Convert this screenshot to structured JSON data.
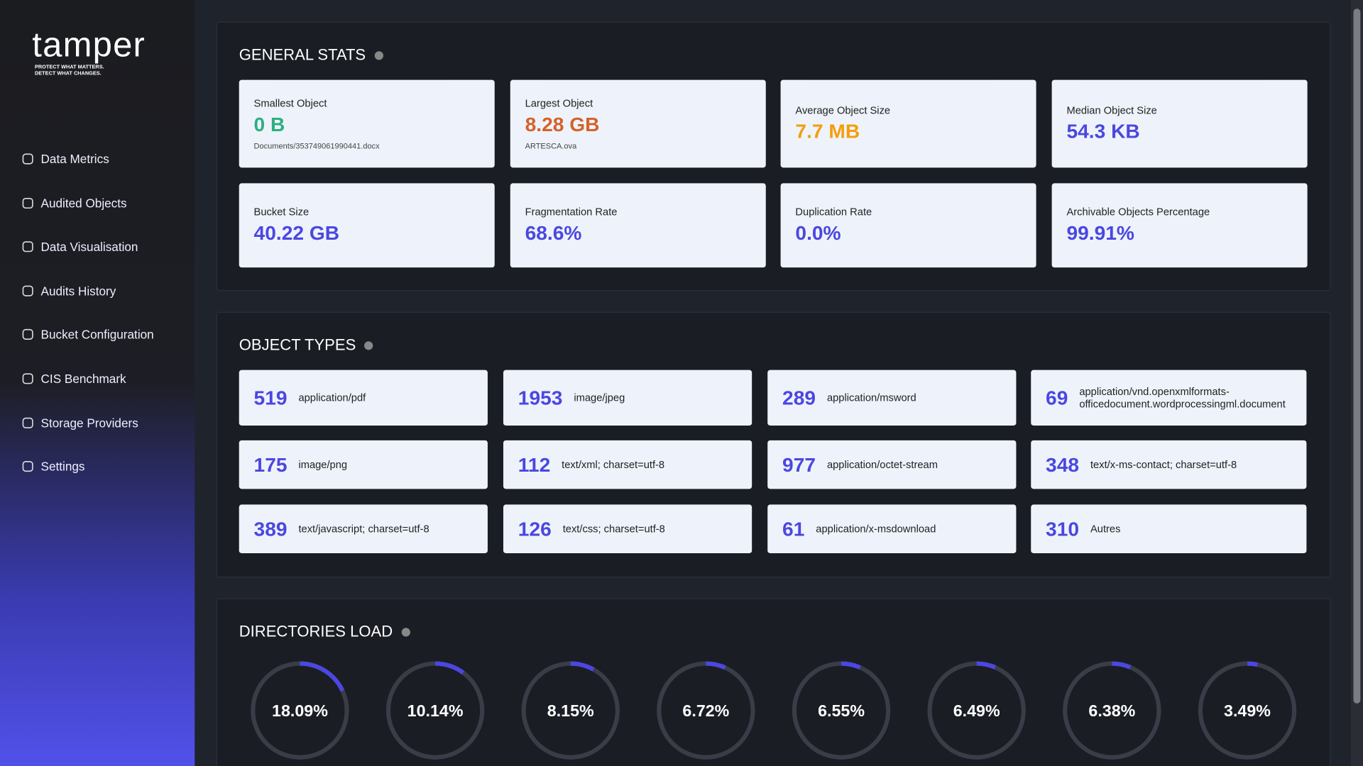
{
  "logo": {
    "name": "tamper",
    "tagline_1": "PROTECT WHAT MATTERS.",
    "tagline_2": "DETECT WHAT CHANGES."
  },
  "nav": [
    "Data Metrics",
    "Audited Objects",
    "Data Visualisation",
    "Audits History",
    "Bucket Configuration",
    "CIS Benchmark",
    "Storage Providers",
    "Settings"
  ],
  "general_stats": {
    "title": "GENERAL STATS",
    "cards": [
      {
        "label": "Smallest Object",
        "value": "0 B",
        "detail": "Documents/353749061990441.docx",
        "color": "#2bb07f"
      },
      {
        "label": "Largest Object",
        "value": "8.28 GB",
        "detail": "ARTESCA.ova",
        "color": "#d5622a"
      },
      {
        "label": "Average Object Size",
        "value": "7.7 MB",
        "color": "#f59e0b"
      },
      {
        "label": "Median Object Size",
        "value": "54.3 KB",
        "color": "#4b47e0"
      },
      {
        "label": "Bucket Size",
        "value": "40.22 GB",
        "color": "#4b47e0"
      },
      {
        "label": "Fragmentation Rate",
        "value": "68.6%",
        "color": "#4b47e0"
      },
      {
        "label": "Duplication Rate",
        "value": "0.0%",
        "color": "#4b47e0"
      },
      {
        "label": "Archivable Objects Percentage",
        "value": "99.91%",
        "color": "#4b47e0"
      }
    ]
  },
  "object_types": {
    "title": "OBJECT TYPES",
    "items": [
      {
        "count": 519,
        "type": "application/pdf"
      },
      {
        "count": 1953,
        "type": "image/jpeg"
      },
      {
        "count": 289,
        "type": "application/msword"
      },
      {
        "count": 69,
        "type": "application/vnd.openxmlformats-officedocument.wordprocessingml.document"
      },
      {
        "count": 175,
        "type": "image/png"
      },
      {
        "count": 112,
        "type": "text/xml; charset=utf-8"
      },
      {
        "count": 977,
        "type": "application/octet-stream"
      },
      {
        "count": 348,
        "type": "text/x-ms-contact; charset=utf-8"
      },
      {
        "count": 389,
        "type": "text/javascript; charset=utf-8"
      },
      {
        "count": 126,
        "type": "text/css; charset=utf-8"
      },
      {
        "count": 61,
        "type": "application/x-msdownload"
      },
      {
        "count": 310,
        "type": "Autres"
      }
    ]
  },
  "directories_load": {
    "title": "DIRECTORIES LOAD",
    "color": "#4b47e0",
    "values": [
      18.09,
      10.14,
      8.15,
      6.72,
      6.55,
      6.49,
      6.38,
      3.49
    ],
    "value_labels": [
      "18.09%",
      "10.14%",
      "8.15%",
      "6.72%",
      "6.55%",
      "6.49%",
      "6.38%",
      "3.49%"
    ]
  }
}
